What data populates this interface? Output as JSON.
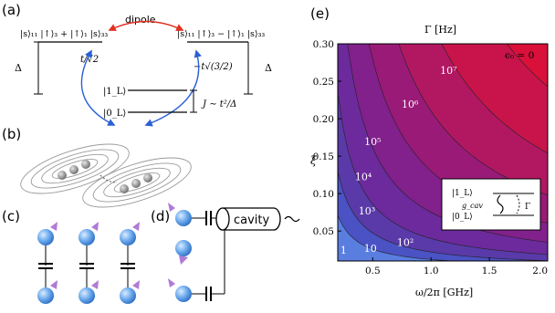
{
  "panels": {
    "a": {
      "label": "(a)",
      "state_left": "|s⟩₁₁ |↑⟩₃ + |↑⟩₁ |s⟩₃₃",
      "state_right": "|s⟩₁₁ |↑⟩₃ − |↑⟩₁ |s⟩₃₃",
      "dipole": "dipole",
      "delta_left": "Δ",
      "delta_right": "Δ",
      "coupling_left": "t/√2",
      "coupling_right": "−t√(3/2)",
      "level_1": "|1_L⟩",
      "level_0": "|0_L⟩",
      "j_label": "J ∼ t²/Δ"
    },
    "b": {
      "label": "(b)"
    },
    "c": {
      "label": "(c)"
    },
    "d": {
      "label": "(d)",
      "cavity": "cavity"
    },
    "e": {
      "label": "(e)",
      "top_axis": "Γ [Hz]",
      "epsilon_label": "ϵ₀ = 0",
      "inset_level_1": "|1_L⟩",
      "inset_level_0": "|0_L⟩",
      "inset_gcav": "g_cav",
      "inset_gamma": "Γ"
    }
  },
  "chart_data": {
    "type": "heatmap",
    "title": "",
    "xlabel": "ω/2π [GHz]",
    "ylabel": "ξ",
    "xlim": [
      0.2,
      2.0
    ],
    "ylim": [
      0.01,
      0.3
    ],
    "xticks": [
      "0.5",
      "1.0",
      "1.5",
      "2.0"
    ],
    "yticks": [
      "0.05",
      "0.10",
      "0.15",
      "0.20",
      "0.25",
      "0.30"
    ],
    "contour_labels": [
      "1",
      "10",
      "10²",
      "10³",
      "10⁴",
      "10⁵",
      "10⁶",
      "10⁷"
    ],
    "colors": [
      "#5a7ee0",
      "#4b52c4",
      "#5a3aa8",
      "#6c2a9c",
      "#82208c",
      "#9a1a78",
      "#b21862",
      "#c8144a",
      "#d8103a"
    ]
  }
}
